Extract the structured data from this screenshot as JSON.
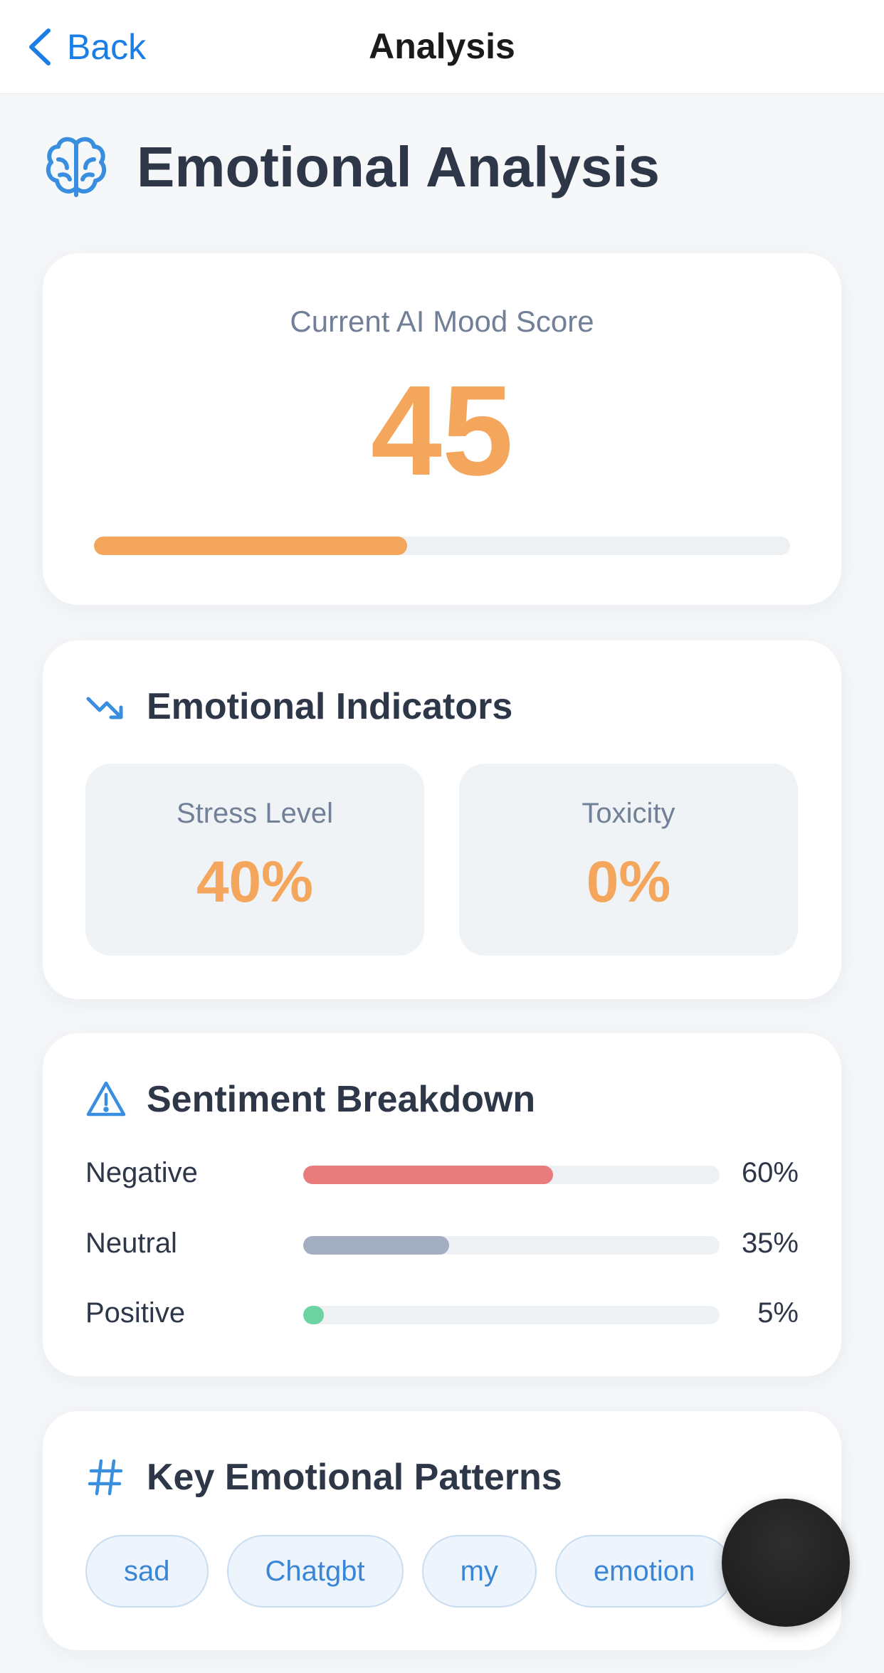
{
  "nav": {
    "back_label": "Back",
    "title": "Analysis"
  },
  "header": {
    "icon": "brain-icon",
    "title": "Emotional Analysis"
  },
  "mood": {
    "label": "Current AI Mood Score",
    "score": "45",
    "progress_fraction": 0.45
  },
  "indicators": {
    "icon": "trending-down-icon",
    "title": "Emotional Indicators",
    "items": [
      {
        "label": "Stress Level",
        "value": "40%"
      },
      {
        "label": "Toxicity",
        "value": "0%"
      }
    ]
  },
  "sentiment": {
    "icon": "warning-triangle-icon",
    "title": "Sentiment Breakdown",
    "rows": [
      {
        "label": "Negative",
        "value": "60%",
        "fraction": 0.6,
        "color": "#e87b7b"
      },
      {
        "label": "Neutral",
        "value": "35%",
        "fraction": 0.35,
        "color": "#a3aec0"
      },
      {
        "label": "Positive",
        "value": "5%",
        "fraction": 0.05,
        "color": "#6ed3a3"
      }
    ]
  },
  "patterns": {
    "icon": "hash-icon",
    "title": "Key Emotional Patterns",
    "tags": [
      "sad",
      "Chatgbt",
      "my",
      "emotion"
    ]
  },
  "colors": {
    "accent": "#1a7ee6",
    "score": "#f4a65c",
    "tag_text": "#3a86d6"
  }
}
